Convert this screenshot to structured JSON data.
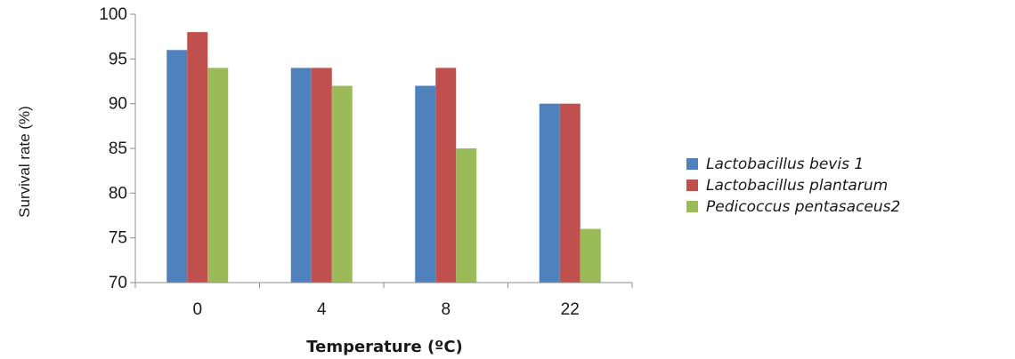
{
  "chart_data": {
    "type": "bar",
    "categories": [
      "0",
      "4",
      "8",
      "22"
    ],
    "series": [
      {
        "name": "Lactobacillus bevis 1",
        "values": [
          96,
          94,
          92,
          90
        ],
        "color": "#4f81bd"
      },
      {
        "name": "Lactobacillus plantarum",
        "values": [
          98,
          94,
          94,
          90
        ],
        "color": "#c0504d"
      },
      {
        "name": "Pedicoccus pentasaceus2",
        "values": [
          94,
          92,
          85,
          76
        ],
        "color": "#9bbb59"
      }
    ],
    "yticks": [
      "70",
      "75",
      "80",
      "85",
      "90",
      "95",
      "100"
    ],
    "ylim": [
      70,
      100
    ],
    "xlabel": "Temperature (ºC)",
    "ylabel": "Survival rate (%)",
    "legend_position": "right",
    "grid": false
  }
}
